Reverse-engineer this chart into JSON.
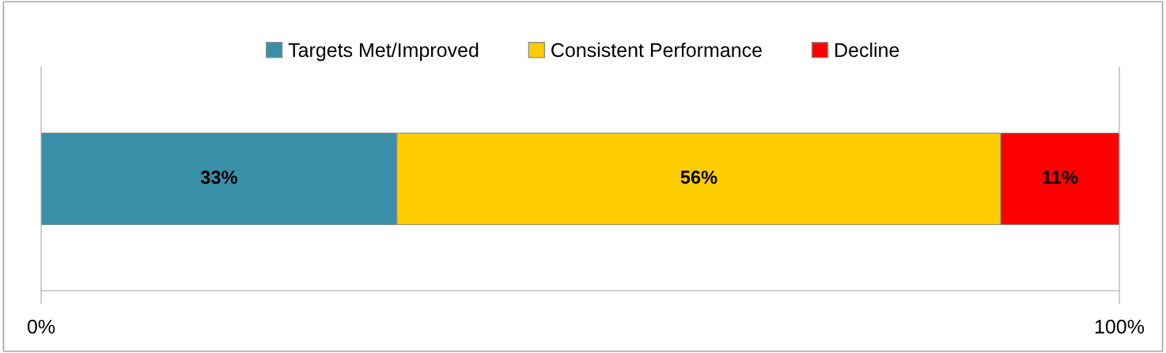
{
  "chart_data": {
    "type": "bar",
    "orientation": "horizontal",
    "stacked": true,
    "categories": [
      null
    ],
    "series": [
      {
        "name": "Targets Met/Improved",
        "color": "#3a8fa8",
        "values": [
          33
        ],
        "value_labels": [
          "33%"
        ]
      },
      {
        "name": "Consistent Performance",
        "color": "#ffcc00",
        "values": [
          56
        ],
        "value_labels": [
          "56%"
        ]
      },
      {
        "name": "Decline",
        "color": "#ff0000",
        "values": [
          11
        ],
        "value_labels": [
          "11%"
        ]
      }
    ],
    "xlim": [
      0,
      100
    ],
    "xticks": [
      {
        "value": 0,
        "label": "0%"
      },
      {
        "value": 100,
        "label": "100%"
      }
    ],
    "legend": "top",
    "grid": false
  }
}
